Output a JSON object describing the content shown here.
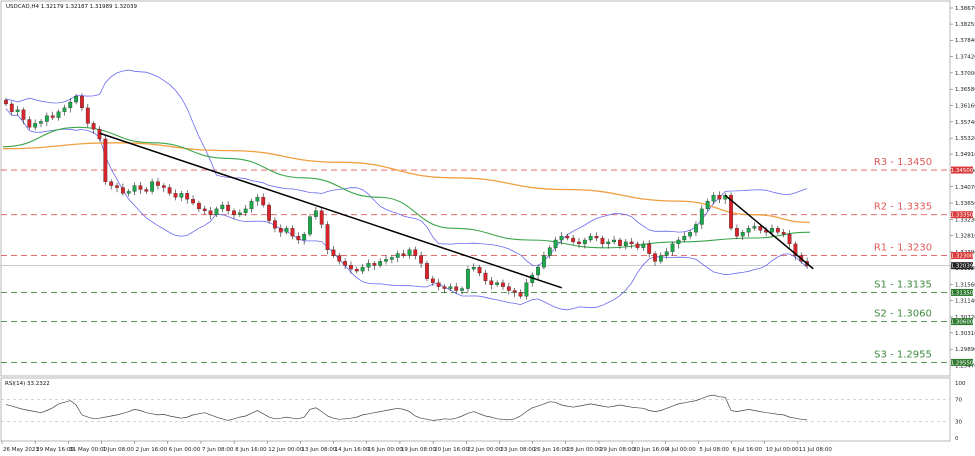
{
  "header": {
    "symbol_line": "USDCAD,H4  1.32179 1.32187 1.31989 1.32039"
  },
  "rsi_header": "RSI(14) 33.2322",
  "chart_data": [
    {
      "type": "candlestick",
      "title": "",
      "y_range": [
        1.292,
        1.3885
      ],
      "y_ticks": [
        "1.38670",
        "1.38255",
        "1.37840",
        "1.37420",
        "1.37000",
        "1.36580",
        "1.36160",
        "1.35740",
        "1.35320",
        "1.34910",
        "1.34490",
        "1.34070",
        "1.33650",
        "1.33230",
        "1.32810",
        "1.32390",
        "1.31980",
        "1.31560",
        "1.31140",
        "1.30720",
        "1.30310",
        "1.29890",
        "1.29470"
      ],
      "x_ticks": [
        "26 May 2023",
        "29 May 16:00",
        "31 May 00:00",
        "1 Jun 08:00",
        "2 Jun 16:00",
        "6 Jun 00:00",
        "7 Jun 08:00",
        "8 Jun 16:00",
        "12 Jun 00:00",
        "13 Jun 08:00",
        "14 Jun 16:00",
        "16 Jun 00:00",
        "19 Jun 08:00",
        "20 Jun 16:00",
        "22 Jun 00:00",
        "23 Jun 08:00",
        "26 Jun 16:00",
        "28 Jun 00:00",
        "29 Jun 08:00",
        "30 Jun 16:00",
        "4 Jul 00:00",
        "5 Jul 08:00",
        "6 Jul 16:00",
        "10 Jul 00:00",
        "11 Jul 08:00"
      ],
      "current_price": "1.32039",
      "levels": [
        {
          "name": "R3 - 1.3450",
          "value": 1.345,
          "tag": "1.34500",
          "color": "#e05a5a",
          "kind": "resistance"
        },
        {
          "name": "R2 - 1.3335",
          "value": 1.3335,
          "tag": "1.33350",
          "color": "#e05a5a",
          "kind": "resistance"
        },
        {
          "name": "R1 - 1.3230",
          "value": 1.323,
          "tag": "1.32300",
          "color": "#e05a5a",
          "kind": "resistance"
        },
        {
          "name": "S1 - 1.3135",
          "value": 1.3135,
          "tag": "1.31350",
          "color": "#3f8a3f",
          "kind": "support"
        },
        {
          "name": "S2 - 1.3060",
          "value": 1.306,
          "tag": "1.30600",
          "color": "#3f8a3f",
          "kind": "support"
        },
        {
          "name": "S3 - 1.2955",
          "value": 1.2955,
          "tag": "1.29550",
          "color": "#3f8a3f",
          "kind": "support"
        }
      ],
      "closes": [
        1.362,
        1.36,
        1.3605,
        1.358,
        1.356,
        1.357,
        1.3575,
        1.359,
        1.3585,
        1.36,
        1.361,
        1.3625,
        1.364,
        1.361,
        1.357,
        1.3555,
        1.353,
        1.342,
        1.341,
        1.3405,
        1.339,
        1.3395,
        1.341,
        1.34,
        1.3395,
        1.342,
        1.341,
        1.3405,
        1.339,
        1.338,
        1.339,
        1.3375,
        1.3365,
        1.335,
        1.3345,
        1.3335,
        1.335,
        1.336,
        1.3345,
        1.3335,
        1.334,
        1.335,
        1.337,
        1.338,
        1.336,
        1.332,
        1.33,
        1.329,
        1.33,
        1.328,
        1.327,
        1.3285,
        1.333,
        1.3345,
        1.331,
        1.3245,
        1.323,
        1.3215,
        1.3205,
        1.3195,
        1.319,
        1.32,
        1.321,
        1.3205,
        1.3215,
        1.322,
        1.3225,
        1.3235,
        1.323,
        1.3245,
        1.323,
        1.321,
        1.317,
        1.316,
        1.315,
        1.3145,
        1.315,
        1.314,
        1.3145,
        1.3195,
        1.32,
        1.3185,
        1.3165,
        1.3155,
        1.316,
        1.315,
        1.314,
        1.3135,
        1.3125,
        1.316,
        1.318,
        1.32,
        1.323,
        1.325,
        1.327,
        1.328,
        1.3275,
        1.3265,
        1.326,
        1.327,
        1.328,
        1.3275,
        1.326,
        1.3265,
        1.327,
        1.3255,
        1.3265,
        1.326,
        1.325,
        1.326,
        1.3235,
        1.3215,
        1.323,
        1.324,
        1.326,
        1.327,
        1.328,
        1.329,
        1.331,
        1.335,
        1.337,
        1.3385,
        1.3375,
        1.3385,
        1.33,
        1.328,
        1.329,
        1.33,
        1.3305,
        1.3295,
        1.329,
        1.33,
        1.329,
        1.3285,
        1.326,
        1.323,
        1.3215,
        1.3204
      ],
      "sma_green": {
        "name": "",
        "color": "#3aa64a",
        "points": [
          [
            0,
            1.351
          ],
          [
            20,
            1.356
          ],
          [
            40,
            1.352
          ],
          [
            60,
            1.348
          ],
          [
            80,
            1.343
          ],
          [
            100,
            1.338
          ],
          [
            120,
            1.33
          ],
          [
            140,
            1.327
          ],
          [
            160,
            1.325
          ],
          [
            180,
            1.3265
          ],
          [
            200,
            1.3275
          ],
          [
            215,
            1.329
          ]
        ]
      },
      "sma_orange": {
        "name": "",
        "color": "#f0a040",
        "points": [
          [
            0,
            1.3505
          ],
          [
            30,
            1.352
          ],
          [
            60,
            1.35
          ],
          [
            90,
            1.347
          ],
          [
            120,
            1.343
          ],
          [
            150,
            1.34
          ],
          [
            180,
            1.337
          ],
          [
            200,
            1.3335
          ],
          [
            215,
            1.3315
          ]
        ]
      },
      "bb_upper": {
        "name": "",
        "color": "#6a6af0"
      },
      "bb_lower": {
        "name": "",
        "color": "#6a6af0"
      },
      "trendlines": [
        {
          "from": [
            16,
            1.3545
          ],
          "to": [
            93,
            1.3147
          ],
          "color": "#000000"
        },
        {
          "from": [
            123,
            1.3385
          ],
          "to": [
            136,
            1.3196
          ],
          "color": "#000000"
        }
      ]
    },
    {
      "type": "line",
      "title": "",
      "series": [
        {
          "name": "",
          "values": [
            61,
            58,
            55,
            52,
            50,
            48,
            46,
            50,
            55,
            62,
            65,
            68,
            60,
            42,
            38,
            35,
            36,
            38,
            40,
            42,
            45,
            48,
            52,
            50,
            46,
            44,
            42,
            43,
            40,
            38,
            36,
            38,
            42,
            44,
            46,
            42,
            38,
            35,
            32,
            35,
            38,
            40,
            45,
            50,
            44,
            38,
            35,
            36,
            38,
            36,
            35,
            38,
            52,
            55,
            48,
            40,
            36,
            34,
            35,
            36,
            38,
            42,
            44,
            46,
            48,
            50,
            52,
            54,
            52,
            48,
            40,
            36,
            34,
            32,
            33,
            35,
            34,
            36,
            40,
            45,
            48,
            44,
            40,
            38,
            35,
            34,
            33,
            35,
            40,
            48,
            55,
            58,
            62,
            66,
            65,
            60,
            58,
            56,
            58,
            60,
            62,
            60,
            58,
            56,
            58,
            60,
            58,
            56,
            55,
            54,
            50,
            48,
            50,
            54,
            58,
            62,
            64,
            66,
            68,
            72,
            76,
            78,
            75,
            74,
            50,
            48,
            50,
            52,
            50,
            48,
            46,
            45,
            43,
            42,
            38,
            36,
            34,
            33
          ]
        }
      ],
      "y_range": [
        0,
        100
      ],
      "y_ticks": [
        "100",
        "70",
        "30",
        "0"
      ],
      "levels": [
        70,
        30
      ]
    }
  ]
}
